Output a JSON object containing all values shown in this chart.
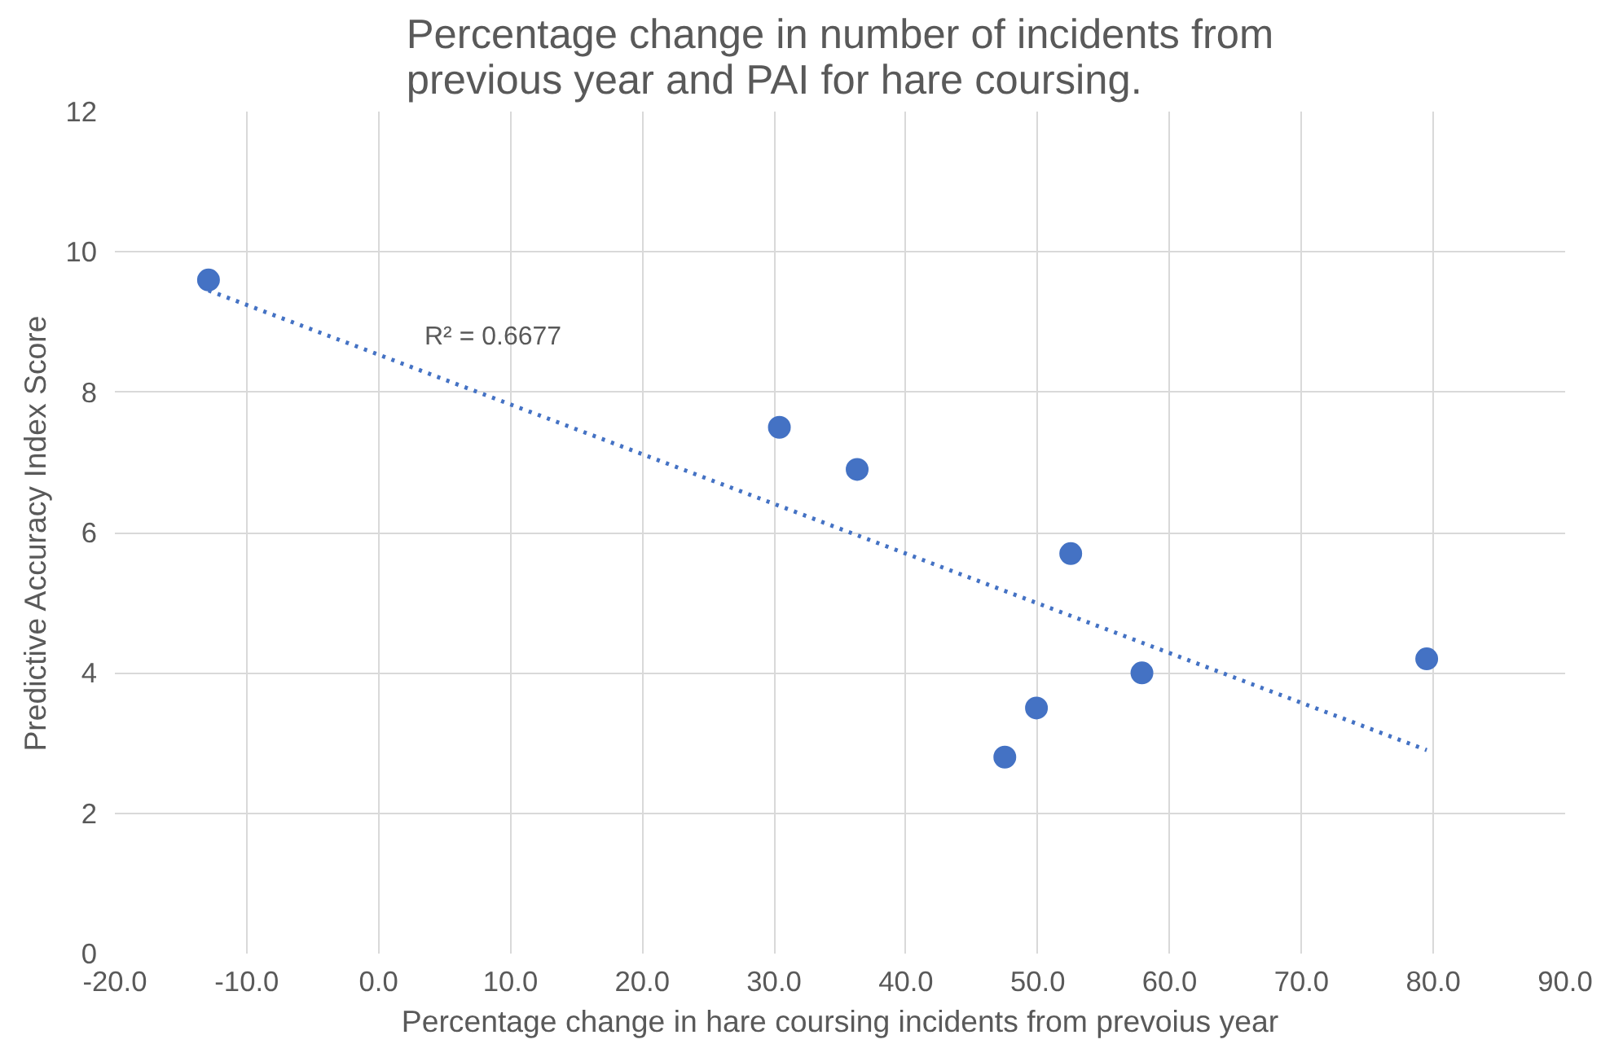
{
  "chart_data": {
    "type": "scatter",
    "title": "Percentage change in number of incidents from previous year and PAI for hare coursing.",
    "xlabel": "Percentage change in hare coursing incidents from prevoius year",
    "ylabel": "Predictive Accuracy Index Score",
    "x": [
      -12.9,
      30.4,
      36.3,
      47.5,
      49.9,
      52.5,
      57.9,
      79.5
    ],
    "series": [
      {
        "color": "#4472c4",
        "values": [
          9.6,
          7.5,
          6.9,
          2.8,
          3.5,
          5.7,
          4.0,
          4.2
        ],
        "marker": "circle"
      },
      {
        "type": "line",
        "color": "#4472c4",
        "x": [
          -12.9,
          79.5
        ],
        "values": [
          9.45,
          2.9
        ],
        "line_style": "dotted",
        "marker": "none"
      }
    ],
    "annotations": [
      "R² = 0.6677"
    ],
    "xlim": [
      -20,
      90
    ],
    "xticks": [
      {
        "value": -20,
        "label": "-20.0"
      },
      {
        "value": -10,
        "label": "-10.0"
      },
      {
        "value": 0,
        "label": "0.0"
      },
      {
        "value": 10,
        "label": "10.0"
      },
      {
        "value": 20,
        "label": "20.0"
      },
      {
        "value": 30,
        "label": "30.0"
      },
      {
        "value": 40,
        "label": "40.0"
      },
      {
        "value": 50,
        "label": "50.0"
      },
      {
        "value": 60,
        "label": "60.0"
      },
      {
        "value": 70,
        "label": "70.0"
      },
      {
        "value": 80,
        "label": "80.0"
      },
      {
        "value": 90,
        "label": "90.0"
      }
    ],
    "ylim": [
      0,
      12
    ],
    "yticks": [
      0,
      2,
      4,
      6,
      8,
      10,
      12
    ],
    "grid": true
  }
}
